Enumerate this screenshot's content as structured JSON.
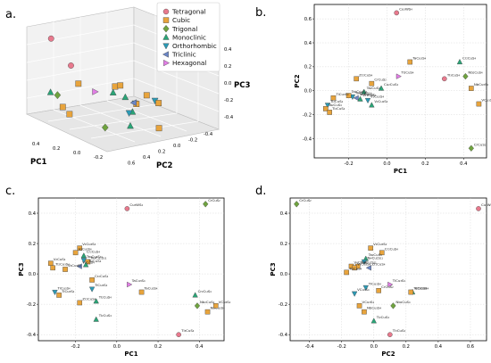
{
  "panel_labels": [
    "a.",
    "b.",
    "c.",
    "d."
  ],
  "legend": [
    {
      "name": "Tetragonal",
      "marker": "circle",
      "color": "#e8798d"
    },
    {
      "name": "Cubic",
      "marker": "square",
      "color": "#e8a43c"
    },
    {
      "name": "Trigonal",
      "marker": "diamond",
      "color": "#6fa33f"
    },
    {
      "name": "Monoclinic",
      "marker": "triangle-up",
      "color": "#2aa577"
    },
    {
      "name": "Orthorhombic",
      "marker": "triangle-down",
      "color": "#2b9ab5"
    },
    {
      "name": "Triclinic",
      "marker": "triangle-left",
      "color": "#6a86c6"
    },
    {
      "name": "Hexagonal",
      "marker": "triangle-right",
      "color": "#e27ee6"
    }
  ],
  "panel_a": {
    "axis_labels": {
      "x": "PC1",
      "y": "PC2",
      "z": "PC3"
    },
    "x_ticks": [
      "0.4",
      "0.2",
      "0.0",
      "-0.2"
    ],
    "y_ticks": [
      "-0.4",
      "-0.2",
      "0.0",
      "0.2",
      "0.4",
      "0.6"
    ],
    "z_ticks": [
      "0.4",
      "0.2",
      "0.0",
      "-0.2",
      "-0.4"
    ]
  },
  "chart_data": [
    {
      "panel": "b",
      "type": "scatter",
      "xlabel": "PC1",
      "ylabel": "PC2",
      "xlim": [
        -0.38,
        0.52
      ],
      "ylim": [
        -0.56,
        0.72
      ],
      "xticks": [
        -0.2,
        0.0,
        0.2,
        0.4
      ],
      "yticks": [
        -0.4,
        -0.2,
        0.0,
        0.2,
        0.4,
        0.6
      ],
      "grid": true,
      "points": [
        {
          "x": 0.05,
          "y": 0.65,
          "cls": "Tetragonal",
          "label": "Cu₃WS₄"
        },
        {
          "x": 0.3,
          "y": 0.1,
          "cls": "Tetragonal",
          "label": "Tl₃CuS₄"
        },
        {
          "x": 0.41,
          "y": 0.12,
          "cls": "Trigonal",
          "label": "Nb₂CuS₄"
        },
        {
          "x": 0.38,
          "y": 0.24,
          "cls": "Monoclinic",
          "label": "Cr₂CuS₄"
        },
        {
          "x": 0.12,
          "y": 0.24,
          "cls": "Cubic",
          "label": "TaCu₃S₄"
        },
        {
          "x": 0.44,
          "y": 0.02,
          "cls": "Cubic",
          "label": "NbCu₃S₄"
        },
        {
          "x": 0.48,
          "y": -0.11,
          "cls": "Cubic",
          "label": "VCu₃S₄"
        },
        {
          "x": 0.44,
          "y": -0.48,
          "cls": "Trigonal",
          "label": "CrCuS₂"
        },
        {
          "x": 0.06,
          "y": 0.12,
          "cls": "Hexagonal",
          "label": "Ti₂CuS₄"
        },
        {
          "x": -0.08,
          "y": 0.06,
          "cls": "Cubic",
          "label": "CrCuS₂"
        },
        {
          "x": -0.03,
          "y": 0.02,
          "cls": "Monoclinic",
          "label": "Cu₂CuS₄"
        },
        {
          "x": -0.16,
          "y": 0.1,
          "cls": "Cubic",
          "label": "Zr₂CuS₄"
        },
        {
          "x": -0.12,
          "y": -0.01,
          "cls": "Monoclinic",
          "label": "Ta₂CuS₄"
        },
        {
          "x": -0.18,
          "y": -0.05,
          "cls": "Orthorhombic",
          "label": "Ta₄Cu₂S₁₁"
        },
        {
          "x": -0.2,
          "y": -0.04,
          "cls": "Cubic",
          "label": "Ta₄Cu₂S₁₁"
        },
        {
          "x": -0.16,
          "y": -0.06,
          "cls": "Triclinic",
          "label": "Ta₂Cu₂S₄"
        },
        {
          "x": -0.14,
          "y": -0.07,
          "cls": "Monoclinic",
          "label": "Zr₂CuS₄"
        },
        {
          "x": -0.1,
          "y": -0.08,
          "cls": "Orthorhombic",
          "label": "V₂Cu₃S₄"
        },
        {
          "x": -0.08,
          "y": -0.12,
          "cls": "Monoclinic",
          "label": "V₂Cu₂S₄"
        },
        {
          "x": -0.28,
          "y": -0.06,
          "cls": "Cubic",
          "label": "TiCu₃S₄"
        },
        {
          "x": -0.31,
          "y": -0.12,
          "cls": "Orthorhombic",
          "label": "Ti₂CuS₄"
        },
        {
          "x": -0.32,
          "y": -0.15,
          "cls": "Cubic",
          "label": "Ta₂CuS₄"
        },
        {
          "x": -0.3,
          "y": -0.18,
          "cls": "Cubic",
          "label": "Ti₂CuS₄"
        }
      ]
    },
    {
      "panel": "c",
      "type": "scatter",
      "xlabel": "PC1",
      "ylabel": "PC3",
      "xlim": [
        -0.38,
        0.52
      ],
      "ylim": [
        -0.44,
        0.5
      ],
      "xticks": [
        -0.2,
        0.0,
        0.2,
        0.4
      ],
      "yticks": [
        -0.4,
        -0.2,
        0.0,
        0.2,
        0.4
      ],
      "grid": true,
      "points": [
        {
          "x": 0.05,
          "y": 0.43,
          "cls": "Tetragonal",
          "label": "Cu₃WS₄"
        },
        {
          "x": 0.43,
          "y": 0.46,
          "cls": "Trigonal",
          "label": "CrCuS₂"
        },
        {
          "x": -0.18,
          "y": 0.17,
          "cls": "Cubic",
          "label": "V₂Cu₃S₄"
        },
        {
          "x": -0.2,
          "y": 0.14,
          "cls": "Cubic",
          "label": "V₂Cu₃S₄"
        },
        {
          "x": -0.16,
          "y": 0.12,
          "cls": "Monoclinic",
          "label": "Cr₂CuS₄"
        },
        {
          "x": -0.16,
          "y": 0.09,
          "cls": "Orthorhombic",
          "label": "Ta₄Cu₂S₁₁"
        },
        {
          "x": -0.14,
          "y": 0.08,
          "cls": "Cubic",
          "label": "Ta₄Cu₂S₁₁"
        },
        {
          "x": -0.15,
          "y": 0.06,
          "cls": "Monoclinic",
          "label": "Ti₂CuS₄"
        },
        {
          "x": -0.18,
          "y": 0.05,
          "cls": "Triclinic",
          "label": "V₂CuS₄"
        },
        {
          "x": -0.32,
          "y": 0.07,
          "cls": "Cubic",
          "label": "V₂CuS₄"
        },
        {
          "x": -0.31,
          "y": 0.04,
          "cls": "Cubic",
          "label": "Ti₂Cu₃S₄"
        },
        {
          "x": -0.25,
          "y": 0.03,
          "cls": "Cubic",
          "label": "V₄Cu₃S₄"
        },
        {
          "x": -0.12,
          "y": -0.04,
          "cls": "Cubic",
          "label": "Cr₂CuS₄"
        },
        {
          "x": -0.3,
          "y": -0.12,
          "cls": "Orthorhombic",
          "label": "TiCu₃S₄"
        },
        {
          "x": -0.28,
          "y": -0.14,
          "cls": "Cubic",
          "label": "TiCu₃S₄"
        },
        {
          "x": -0.12,
          "y": -0.1,
          "cls": "Orthorhombic",
          "label": "TiCu₃S₄"
        },
        {
          "x": -0.18,
          "y": -0.19,
          "cls": "Cubic",
          "label": "Zr₂CuS₄"
        },
        {
          "x": -0.1,
          "y": -0.18,
          "cls": "Monoclinic",
          "label": "Ti₂CuS₄"
        },
        {
          "x": -0.1,
          "y": -0.3,
          "cls": "Monoclinic",
          "label": "Ti₂CuS₄"
        },
        {
          "x": 0.06,
          "y": -0.07,
          "cls": "Hexagonal",
          "label": "TaCu₃S₄"
        },
        {
          "x": 0.12,
          "y": -0.12,
          "cls": "Cubic",
          "label": "TaCu₃S₄"
        },
        {
          "x": 0.38,
          "y": -0.14,
          "cls": "Monoclinic",
          "label": "Cr₂CuS₄"
        },
        {
          "x": 0.3,
          "y": -0.4,
          "cls": "Tetragonal",
          "label": "Tl₃CuS₄"
        },
        {
          "x": 0.39,
          "y": -0.21,
          "cls": "Trigonal",
          "label": "Nb₂CuS₄"
        },
        {
          "x": 0.44,
          "y": -0.25,
          "cls": "Cubic",
          "label": "NbCu₃S₄"
        },
        {
          "x": 0.48,
          "y": -0.21,
          "cls": "Cubic",
          "label": "VCu₃S₄"
        }
      ]
    },
    {
      "panel": "d",
      "type": "scatter",
      "xlabel": "PC2",
      "ylabel": "PC3",
      "xlim": [
        -0.52,
        0.7
      ],
      "ylim": [
        -0.44,
        0.5
      ],
      "xticks": [
        -0.4,
        -0.2,
        0.0,
        0.2,
        0.4,
        0.6
      ],
      "yticks": [
        -0.4,
        -0.2,
        0.0,
        0.2,
        0.4
      ],
      "grid": true,
      "points": [
        {
          "x": -0.48,
          "y": 0.46,
          "cls": "Trigonal",
          "label": "CrCuS₂"
        },
        {
          "x": 0.65,
          "y": 0.43,
          "cls": "Tetragonal",
          "label": "Cu₃WS₄"
        },
        {
          "x": -0.02,
          "y": 0.17,
          "cls": "Cubic",
          "label": "V₂Cu₃S₄"
        },
        {
          "x": 0.05,
          "y": 0.14,
          "cls": "Cubic",
          "label": "Cr₂CuS₄"
        },
        {
          "x": -0.05,
          "y": 0.1,
          "cls": "Monoclinic",
          "label": "Ta₂CuS₄"
        },
        {
          "x": -0.06,
          "y": 0.08,
          "cls": "Orthorhombic",
          "label": "Ta₄Cu₂S₁₁"
        },
        {
          "x": -0.1,
          "y": 0.05,
          "cls": "Cubic",
          "label": "Ta₄Cu₂S₁₁"
        },
        {
          "x": -0.14,
          "y": 0.05,
          "cls": "Cubic",
          "label": "V₄Cu₂S₄"
        },
        {
          "x": -0.12,
          "y": 0.04,
          "cls": "Cubic",
          "label": "V₂Cu₃S₄"
        },
        {
          "x": -0.03,
          "y": 0.04,
          "cls": "Triclinic",
          "label": "Zr₂CuS₄"
        },
        {
          "x": -0.17,
          "y": 0.01,
          "cls": "Cubic",
          "label": "Ti₂CuS₄"
        },
        {
          "x": 0.1,
          "y": -0.07,
          "cls": "Hexagonal",
          "label": "TiCu₃S₄"
        },
        {
          "x": -0.05,
          "y": -0.09,
          "cls": "Orthorhombic",
          "label": "TiCu₃S₄"
        },
        {
          "x": 0.24,
          "y": -0.12,
          "cls": "Monoclinic",
          "label": "Cr₂CuS₄"
        },
        {
          "x": 0.23,
          "y": -0.12,
          "cls": "Cubic",
          "label": "TaCu₃S₄"
        },
        {
          "x": 0.03,
          "y": -0.11,
          "cls": "Cubic",
          "label": "CrCuS₂"
        },
        {
          "x": -0.12,
          "y": -0.13,
          "cls": "Orthorhombic",
          "label": "VCu₃S₄"
        },
        {
          "x": -0.09,
          "y": -0.21,
          "cls": "Cubic",
          "label": "VCu₃S₄"
        },
        {
          "x": 0.12,
          "y": -0.21,
          "cls": "Trigonal",
          "label": "Nb₂CuS₄"
        },
        {
          "x": -0.06,
          "y": -0.25,
          "cls": "Cubic",
          "label": "NbCu₃S₄"
        },
        {
          "x": 0.0,
          "y": -0.31,
          "cls": "Monoclinic",
          "label": "Ti₂CuS₄"
        },
        {
          "x": 0.1,
          "y": -0.4,
          "cls": "Tetragonal",
          "label": "Tl₃CuS₄"
        }
      ]
    }
  ]
}
